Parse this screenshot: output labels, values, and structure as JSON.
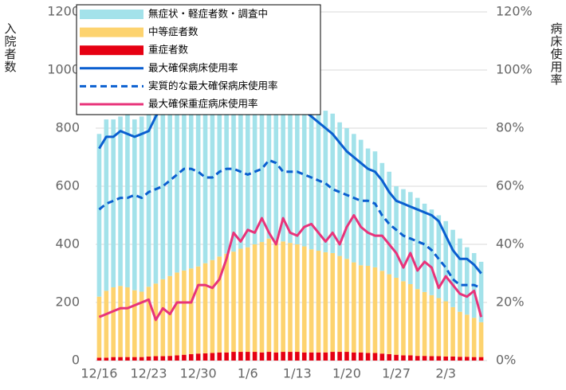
{
  "chart_data": {
    "type": "bar",
    "stacked": true,
    "y_label": "入院者数",
    "y2_label": "病床使用率",
    "categories": [
      "12/16",
      null,
      null,
      null,
      null,
      null,
      null,
      "12/23",
      null,
      null,
      null,
      null,
      null,
      null,
      "12/30",
      null,
      null,
      null,
      null,
      null,
      null,
      "1/6",
      null,
      null,
      null,
      null,
      null,
      null,
      "1/13",
      null,
      null,
      null,
      null,
      null,
      null,
      "1/20",
      null,
      null,
      null,
      null,
      null,
      null,
      "1/27",
      null,
      null,
      null,
      null,
      null,
      null,
      "2/3",
      null,
      null,
      null,
      null,
      null
    ],
    "ylim": [
      0,
      1200
    ],
    "yticks": [
      0,
      200,
      400,
      600,
      800,
      1000,
      1200
    ],
    "y2lim": [
      0,
      120
    ],
    "y2ticks": [
      {
        "value": 0,
        "label": "0%"
      },
      {
        "value": 20,
        "label": "20%"
      },
      {
        "value": 40,
        "label": "40%"
      },
      {
        "value": 60,
        "label": "60%"
      },
      {
        "value": 80,
        "label": "80%"
      },
      {
        "value": 100,
        "label": "100%"
      },
      {
        "value": 120,
        "label": "120%"
      }
    ],
    "grid": true,
    "legend": "upper left",
    "series": [
      {
        "name": "重症者数",
        "type": "bar",
        "color": "#e60012",
        "values": [
          10,
          10,
          12,
          12,
          12,
          12,
          12,
          14,
          15,
          15,
          16,
          18,
          20,
          22,
          24,
          25,
          26,
          28,
          28,
          30,
          30,
          30,
          30,
          28,
          30,
          28,
          30,
          30,
          30,
          28,
          28,
          28,
          28,
          30,
          30,
          30,
          28,
          28,
          26,
          26,
          24,
          22,
          20,
          18,
          18,
          16,
          16,
          15,
          15,
          14,
          14,
          13,
          13,
          12,
          12
        ]
      },
      {
        "name": "中等症者数",
        "type": "bar",
        "color": "#fdd36f",
        "values": [
          210,
          230,
          240,
          245,
          240,
          230,
          225,
          240,
          250,
          265,
          275,
          285,
          290,
          295,
          300,
          310,
          320,
          330,
          340,
          345,
          355,
          360,
          370,
          380,
          390,
          385,
          380,
          375,
          370,
          365,
          355,
          350,
          345,
          340,
          330,
          320,
          310,
          300,
          300,
          295,
          285,
          275,
          265,
          255,
          245,
          230,
          220,
          210,
          200,
          190,
          170,
          155,
          145,
          135,
          120
        ]
      },
      {
        "name": "無症状・軽症者数・調査中",
        "type": "bar",
        "color": "#a3e2ea",
        "values": [
          560,
          590,
          578,
          583,
          598,
          588,
          603,
          616,
          635,
          670,
          699,
          707,
          710,
          713,
          716,
          725,
          724,
          722,
          712,
          715,
          675,
          700,
          680,
          662,
          640,
          627,
          590,
          585,
          560,
          547,
          527,
          502,
          487,
          480,
          460,
          450,
          442,
          432,
          404,
          399,
          371,
          353,
          315,
          317,
          317,
          314,
          304,
          295,
          285,
          276,
          266,
          252,
          232,
          223,
          208
        ]
      },
      {
        "name": "最大確保病床使用率",
        "type": "line",
        "axis": "y2",
        "color": "#0a5fd0",
        "style": "solid",
        "values": [
          73,
          77,
          77,
          79,
          78,
          77,
          78,
          79,
          84,
          88,
          92,
          96,
          99,
          101,
          102,
          102,
          103,
          103,
          102,
          103,
          101,
          102,
          101,
          99,
          97,
          95,
          92,
          90,
          88,
          86,
          84,
          82,
          80,
          78,
          75,
          72,
          70,
          68,
          66,
          65,
          62,
          58,
          55,
          54,
          53,
          52,
          51,
          50,
          48,
          43,
          38,
          35,
          35,
          33,
          30
        ]
      },
      {
        "name": "実質的な最大確保病床使用率",
        "type": "line",
        "axis": "y2",
        "color": "#0a5fd0",
        "style": "dashed",
        "values": [
          52,
          54,
          55,
          56,
          56,
          57,
          56,
          58,
          59,
          60,
          62,
          64,
          66,
          66,
          65,
          63,
          63,
          65,
          66,
          66,
          65,
          64,
          65,
          66,
          69,
          68,
          65,
          65,
          65,
          64,
          63,
          62,
          61,
          59,
          58,
          57,
          56,
          55,
          55,
          54,
          50,
          47,
          45,
          43,
          42,
          41,
          40,
          38,
          35,
          32,
          28,
          26,
          26,
          26,
          25
        ]
      },
      {
        "name": "最大確保重症病床使用率",
        "type": "line",
        "axis": "y2",
        "color": "#e8337a",
        "style": "solid",
        "values": [
          15,
          16,
          17,
          18,
          18,
          19,
          20,
          21,
          14,
          18,
          16,
          20,
          20,
          20,
          26,
          26,
          25,
          28,
          35,
          44,
          41,
          45,
          44,
          49,
          44,
          40,
          49,
          44,
          43,
          46,
          47,
          44,
          41,
          44,
          40,
          46,
          50,
          46,
          44,
          43,
          43,
          40,
          37,
          32,
          37,
          31,
          34,
          32,
          25,
          29,
          26,
          23,
          22,
          24,
          15
        ]
      }
    ]
  }
}
